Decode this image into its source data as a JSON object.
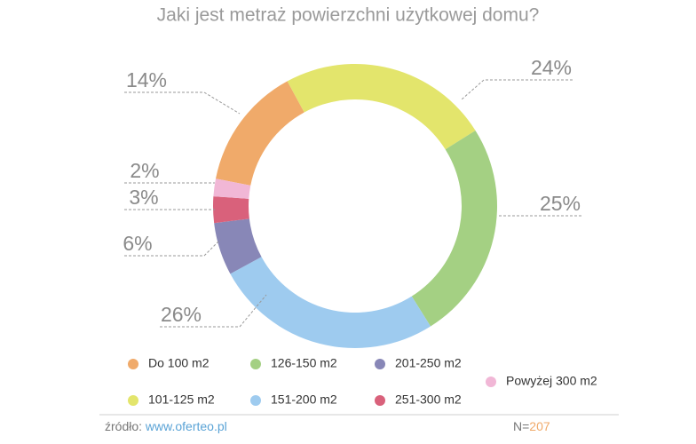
{
  "chart_data": {
    "type": "donut",
    "title": "Jaki jest metraż powierzchni użytkowej domu?",
    "categories": [
      "Do 100 m2",
      "101-125 m2",
      "126-150 m2",
      "151-200 m2",
      "201-250 m2",
      "251-300 m2",
      "Powyżej 300 m2"
    ],
    "values": [
      14,
      24,
      25,
      26,
      6,
      3,
      2
    ],
    "value_labels": [
      "14%",
      "24%",
      "25%",
      "26%",
      "6%",
      "3%",
      "2%"
    ],
    "colors": [
      "#f0aa6a",
      "#e3e56c",
      "#a4d083",
      "#9ecbef",
      "#8887b7",
      "#d9617b",
      "#f1b7d6"
    ]
  },
  "footer": {
    "source_label": "źródło:",
    "source_url": "www.oferteo.pl",
    "n_label": "N=",
    "n_value": "207"
  }
}
